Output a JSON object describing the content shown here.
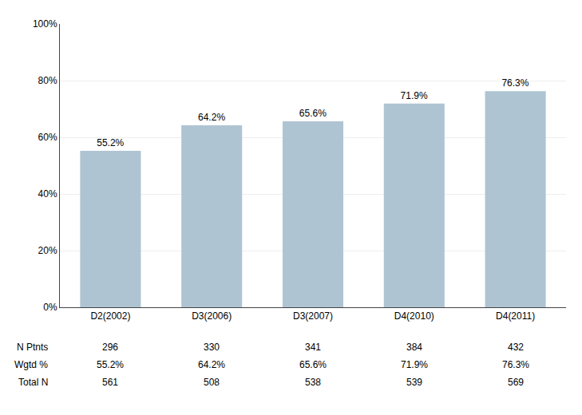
{
  "chart_data": {
    "type": "bar",
    "categories": [
      "D2(2002)",
      "D3(2006)",
      "D3(2007)",
      "D4(2010)",
      "D4(2011)"
    ],
    "values": [
      55.2,
      64.2,
      65.6,
      71.9,
      76.3
    ],
    "value_labels": [
      "55.2%",
      "64.2%",
      "65.6%",
      "71.9%",
      "76.3%"
    ],
    "data_labels": true,
    "color": "#afc4d2",
    "ylim": [
      0,
      100
    ],
    "yticks": [
      {
        "value": 0,
        "label": "0%"
      },
      {
        "value": 20,
        "label": "20%"
      },
      {
        "value": 40,
        "label": "40%"
      },
      {
        "value": 60,
        "label": "60%"
      },
      {
        "value": 80,
        "label": "80%"
      },
      {
        "value": 100,
        "label": "100%"
      }
    ],
    "grid": true,
    "table": [
      {
        "name": "N Ptnts",
        "values": [
          296,
          330,
          341,
          384,
          432
        ]
      },
      {
        "name": "Wgtd %",
        "values": [
          55.2,
          64.2,
          65.6,
          71.9,
          76.3
        ],
        "value_labels": [
          "55.2%",
          "64.2%",
          "65.6%",
          "71.9%",
          "76.3%"
        ]
      },
      {
        "name": "Total N",
        "values": [
          561,
          508,
          538,
          539,
          569
        ]
      }
    ]
  }
}
